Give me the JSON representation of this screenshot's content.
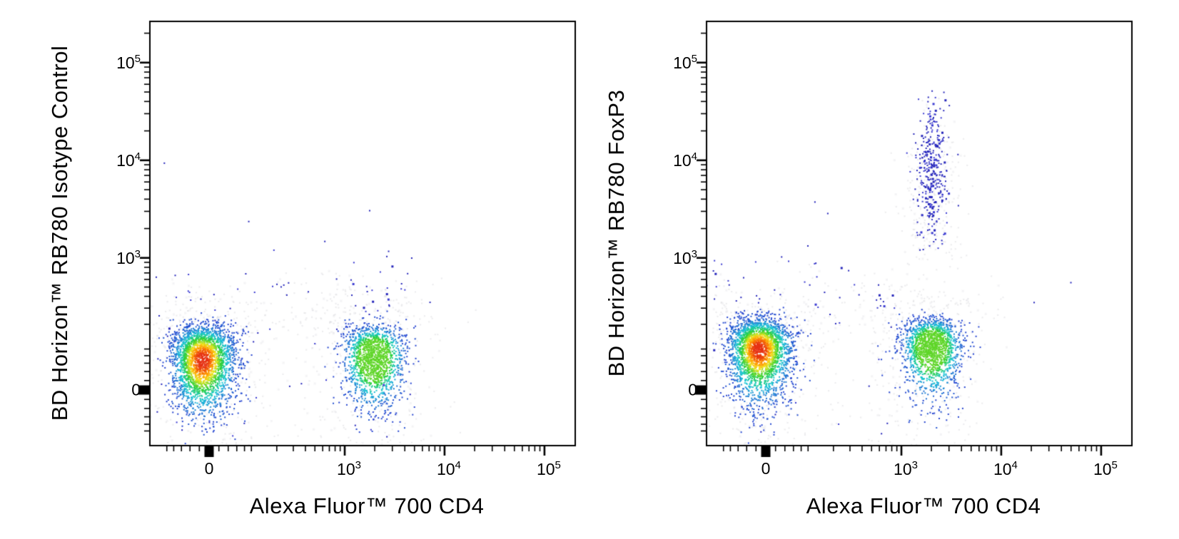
{
  "figure": {
    "background": "#ffffff",
    "kind": "flow-cytometry pseudocolor dot plots, two panels"
  },
  "colors": {
    "axis": "#000000",
    "text": "#000000",
    "background": "#ffffff",
    "density_colormap": [
      "#2a2ad0",
      "#18c8d8",
      "#2ed12e",
      "#f5e51e",
      "#ff8c00",
      "#e63115"
    ],
    "sparse_dot": "#2626bb",
    "sparse_dot_alt": "#3c3cd2",
    "speckle": "#d9d9de"
  },
  "chart_data": [
    {
      "type": "scatter",
      "plot_kind": "flow-cytometry-density",
      "xlabel": "Alexa Fluor™ 700  CD4",
      "ylabel": "BD Horizon™ RB780  Isotype Control",
      "x_scale": "biexponential",
      "y_scale": "biexponential",
      "x_range": [
        -165,
        200000
      ],
      "y_range": [
        -155,
        270000
      ],
      "x_ticks": [
        {
          "value": 0,
          "base": "0"
        },
        {
          "value": 1000,
          "base": "10",
          "sup": "3"
        },
        {
          "value": 10000,
          "base": "10",
          "sup": "4"
        },
        {
          "value": 100000,
          "base": "10",
          "sup": "5"
        }
      ],
      "y_ticks": [
        {
          "value": 0,
          "base": "0"
        },
        {
          "value": 1000,
          "base": "10",
          "sup": "3"
        },
        {
          "value": 10000,
          "base": "10",
          "sup": "4"
        },
        {
          "value": 100000,
          "base": "10",
          "sup": "5"
        }
      ],
      "populations": [
        {
          "name": "speckle-around-cd4neg",
          "kind": "speckle",
          "n": 430,
          "x": {
            "dist": "linear",
            "mean": -15,
            "sigma": 85
          },
          "y": {
            "dist": "linear",
            "mean": 75,
            "sigma": 170
          }
        },
        {
          "name": "speckle-around-cd4pos",
          "kind": "speckle",
          "n": 390,
          "x": {
            "dist": "log",
            "mean": 3.29,
            "sigma": 0.33
          },
          "y": {
            "dist": "linear",
            "mean": 85,
            "sigma": 190
          }
        },
        {
          "name": "speckle-band",
          "kind": "speckle",
          "n": 210,
          "x": {
            "dist": "linear",
            "mean": 300,
            "sigma": 550
          },
          "y": {
            "dist": "linear",
            "mean": 140,
            "sigma": 290
          }
        },
        {
          "name": "stray-events-cd4neg",
          "kind": "sparse",
          "n": 48,
          "x": {
            "dist": "linear",
            "mean": -15,
            "sigma": 120
          },
          "y": {
            "dist": "linear",
            "mean": 260,
            "sigma": 330
          }
        },
        {
          "name": "stray-events-cd4pos",
          "kind": "sparse",
          "n": 52,
          "x": {
            "dist": "log",
            "mean": 3.28,
            "sigma": 0.33
          },
          "y": {
            "dist": "linear",
            "mean": 280,
            "sigma": 380
          }
        },
        {
          "name": "cd4-negative-lymphocytes",
          "kind": "density",
          "n": 2600,
          "core_cap": 1.0,
          "x": {
            "dist": "linear",
            "mean": -15,
            "sigma": 35
          },
          "y": {
            "dist": "linear",
            "mean": 70,
            "sigma": 62
          }
        },
        {
          "name": "cd4-positive-lymphocytes",
          "kind": "density",
          "n": 1550,
          "core_cap": 0.52,
          "x": {
            "dist": "log",
            "mean": 3.29,
            "sigma": 0.155
          },
          "y": {
            "dist": "linear",
            "mean": 78,
            "sigma": 58
          }
        }
      ],
      "outliers": [
        [
          -110,
          9500
        ],
        [
          620,
          1500
        ],
        [
          1750,
          3100
        ],
        [
          2600,
          1050
        ],
        [
          90,
          2400
        ],
        [
          -260,
          800
        ],
        [
          4200,
          700
        ]
      ]
    },
    {
      "type": "scatter",
      "plot_kind": "flow-cytometry-density",
      "xlabel": "Alexa Fluor™ 700  CD4",
      "ylabel": "BD Horizon™ RB780  FoxP3",
      "x_scale": "biexponential",
      "y_scale": "biexponential",
      "x_range": [
        -165,
        200000
      ],
      "y_range": [
        -155,
        270000
      ],
      "x_ticks": [
        {
          "value": 0,
          "base": "0"
        },
        {
          "value": 1000,
          "base": "10",
          "sup": "3"
        },
        {
          "value": 10000,
          "base": "10",
          "sup": "4"
        },
        {
          "value": 100000,
          "base": "10",
          "sup": "5"
        }
      ],
      "y_ticks": [
        {
          "value": 0,
          "base": "0"
        },
        {
          "value": 1000,
          "base": "10",
          "sup": "3"
        },
        {
          "value": 10000,
          "base": "10",
          "sup": "4"
        },
        {
          "value": 100000,
          "base": "10",
          "sup": "5"
        }
      ],
      "populations": [
        {
          "name": "speckle-around-cd4neg",
          "kind": "speckle",
          "n": 430,
          "x": {
            "dist": "linear",
            "mean": -15,
            "sigma": 85
          },
          "y": {
            "dist": "linear",
            "mean": 105,
            "sigma": 180
          }
        },
        {
          "name": "speckle-around-cd4pos",
          "kind": "speckle",
          "n": 380,
          "x": {
            "dist": "log",
            "mean": 3.3,
            "sigma": 0.3
          },
          "y": {
            "dist": "linear",
            "mean": 110,
            "sigma": 200
          }
        },
        {
          "name": "speckle-foxp3-plume",
          "kind": "speckle",
          "n": 300,
          "x": {
            "dist": "log",
            "mean": 3.3,
            "sigma": 0.15
          },
          "y": {
            "dist": "logtri",
            "lo": 2.7,
            "hi": 4.65
          }
        },
        {
          "name": "speckle-band",
          "kind": "speckle",
          "n": 190,
          "x": {
            "dist": "linear",
            "mean": 350,
            "sigma": 550
          },
          "y": {
            "dist": "linear",
            "mean": 170,
            "sigma": 300
          }
        },
        {
          "name": "foxp3-positive-treg-plume",
          "kind": "sparse",
          "n": 330,
          "x": {
            "dist": "log",
            "mean": 3.3,
            "sigma": 0.085
          },
          "y": {
            "dist": "logtri",
            "lo": 3.05,
            "hi": 4.75
          }
        },
        {
          "name": "stray-events-cd4neg",
          "kind": "sparse",
          "n": 42,
          "x": {
            "dist": "linear",
            "mean": -20,
            "sigma": 130
          },
          "y": {
            "dist": "linear",
            "mean": 380,
            "sigma": 520
          }
        },
        {
          "name": "stray-events-mid",
          "kind": "sparse",
          "n": 34,
          "x": {
            "dist": "linear",
            "mean": 380,
            "sigma": 300
          },
          "y": {
            "dist": "linear",
            "mean": 260,
            "sigma": 280
          }
        },
        {
          "name": "cd4-negative-lymphocytes",
          "kind": "density",
          "n": 2600,
          "core_cap": 1.0,
          "x": {
            "dist": "linear",
            "mean": -15,
            "sigma": 35
          },
          "y": {
            "dist": "linear",
            "mean": 100,
            "sigma": 66
          }
        },
        {
          "name": "cd4pos-foxp3neg-lymphocytes",
          "kind": "density",
          "n": 1600,
          "core_cap": 0.52,
          "x": {
            "dist": "log",
            "mean": 3.3,
            "sigma": 0.15
          },
          "y": {
            "dist": "linear",
            "mean": 108,
            "sigma": 62
          }
        }
      ],
      "outliers": [
        [
          -270,
          2600
        ],
        [
          170,
          2900
        ],
        [
          2000,
          52000
        ],
        [
          49000,
          565
        ],
        [
          21000,
          350
        ],
        [
          -350,
          1500
        ],
        [
          120,
          3800
        ]
      ]
    }
  ]
}
